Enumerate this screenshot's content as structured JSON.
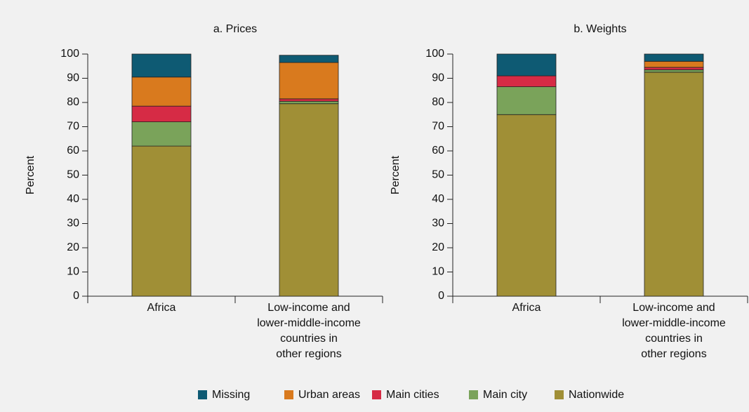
{
  "chart_data": [
    {
      "type": "stacked-bar",
      "title": "a. Prices",
      "ylabel": "Percent",
      "categories": [
        "Africa",
        "Low-income and\nlower-middle-income\ncountries in\nother regions"
      ],
      "series": [
        {
          "name": "Missing",
          "color": "#0e5a73",
          "values": [
            9.5,
            3
          ]
        },
        {
          "name": "Urban areas",
          "color": "#d97a1e",
          "values": [
            12,
            15
          ]
        },
        {
          "name": "Main cities",
          "color": "#d62b45",
          "values": [
            6.5,
            1
          ]
        },
        {
          "name": "Main city",
          "color": "#7aa35a",
          "values": [
            10,
            1
          ]
        },
        {
          "name": "Nationwide",
          "color": "#a08f36",
          "values": [
            62,
            79.5
          ]
        }
      ],
      "ylim": [
        0,
        100
      ],
      "yticks": [
        0,
        10,
        20,
        30,
        40,
        50,
        60,
        70,
        80,
        90,
        100
      ]
    },
    {
      "type": "stacked-bar",
      "title": "b. Weights",
      "ylabel": "Percent",
      "categories": [
        "Africa",
        "Low-income and\nlower-middle-income\ncountries in\nother regions"
      ],
      "series": [
        {
          "name": "Missing",
          "color": "#0e5a73",
          "values": [
            9,
            3
          ]
        },
        {
          "name": "Urban areas",
          "color": "#d97a1e",
          "values": [
            0,
            2.5
          ]
        },
        {
          "name": "Main cities",
          "color": "#d62b45",
          "values": [
            4.5,
            1
          ]
        },
        {
          "name": "Main city",
          "color": "#7aa35a",
          "values": [
            11.5,
            1
          ]
        },
        {
          "name": "Nationwide",
          "color": "#a08f36",
          "values": [
            75,
            92.5
          ]
        }
      ],
      "ylim": [
        0,
        100
      ],
      "yticks": [
        0,
        10,
        20,
        30,
        40,
        50,
        60,
        70,
        80,
        90,
        100
      ]
    }
  ]
}
